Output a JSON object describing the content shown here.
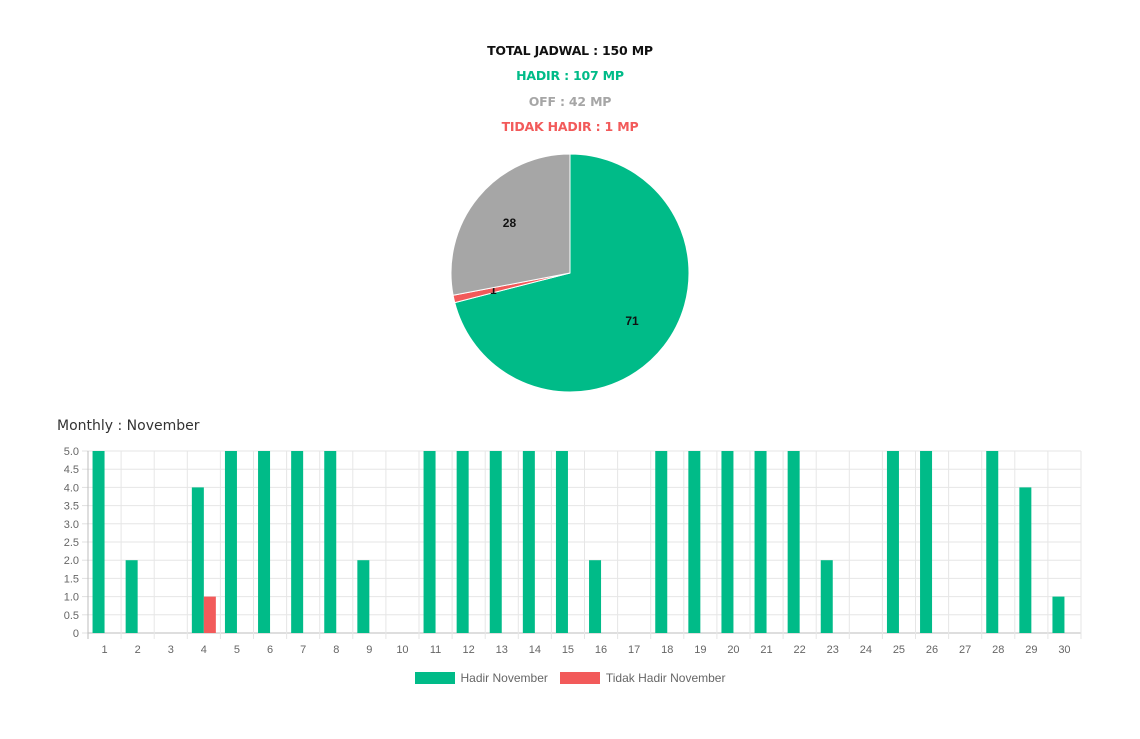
{
  "colors": {
    "hadir": "#00bb88",
    "off": "#a6a6a6",
    "tidak_hadir": "#f25a5a",
    "total": "#111111"
  },
  "summary": {
    "total": "TOTAL JADWAL : 150 MP",
    "hadir": "HADIR : 107 MP",
    "off": "OFF : 42 MP",
    "tidak_hadir": "TIDAK HADIR : 1 MP"
  },
  "monthly_title": "Monthly : November",
  "chart_data": [
    {
      "type": "pie",
      "slices": [
        {
          "label": "71",
          "value": 71,
          "color": "#00bb88"
        },
        {
          "label": "1",
          "value": 1,
          "color": "#f25a5a"
        },
        {
          "label": "28",
          "value": 28,
          "color": "#a6a6a6"
        }
      ]
    },
    {
      "type": "bar",
      "title": "Monthly : November",
      "categories": [
        "1",
        "2",
        "3",
        "4",
        "5",
        "6",
        "7",
        "8",
        "9",
        "10",
        "11",
        "12",
        "13",
        "14",
        "15",
        "16",
        "17",
        "18",
        "19",
        "20",
        "21",
        "22",
        "23",
        "24",
        "25",
        "26",
        "27",
        "28",
        "29",
        "30"
      ],
      "series": [
        {
          "name": "Hadir November",
          "color": "#00bb88",
          "values": [
            5,
            2,
            0,
            4,
            5,
            5,
            5,
            5,
            2,
            0,
            5,
            5,
            5,
            5,
            5,
            2,
            0,
            5,
            5,
            5,
            5,
            5,
            2,
            0,
            5,
            5,
            0,
            5,
            4,
            1
          ]
        },
        {
          "name": "Tidak Hadir November",
          "color": "#f25a5a",
          "values": [
            0,
            0,
            0,
            1,
            0,
            0,
            0,
            0,
            0,
            0,
            0,
            0,
            0,
            0,
            0,
            0,
            0,
            0,
            0,
            0,
            0,
            0,
            0,
            0,
            0,
            0,
            0,
            0,
            0,
            0
          ]
        }
      ],
      "ylim": [
        0,
        5
      ],
      "yticks": [
        "0",
        "0.5",
        "1.0",
        "1.5",
        "2.0",
        "2.5",
        "3.0",
        "3.5",
        "4.0",
        "4.5",
        "5.0"
      ],
      "grid": true,
      "legend": "bottom"
    }
  ]
}
